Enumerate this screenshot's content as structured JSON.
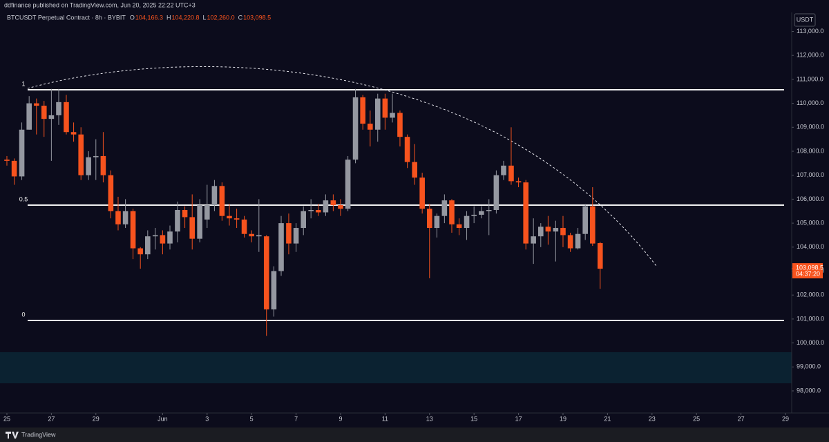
{
  "chart_data": {
    "type": "candlestick",
    "header": "ddfinance published on TradingView.com, Jun 20, 2025 22:22 UTC+3",
    "legend": "BTCUSDT Perpetual Contract · 8h · BYBIT",
    "ohlc_labels": [
      {
        "key": "O",
        "value": "104,166.3"
      },
      {
        "key": "H",
        "value": "104,220.8"
      },
      {
        "key": "L",
        "value": "102,260.0"
      },
      {
        "key": "C",
        "value": "103,098.5"
      }
    ],
    "currency": "USDT",
    "footer": "TradingView",
    "up_color": "#9598a1",
    "down_color": "#f7531e",
    "x": [
      0,
      0.33,
      0.67,
      1,
      1.33,
      1.67,
      2,
      2.33,
      2.67,
      3,
      3.33,
      3.67,
      4,
      4.33,
      4.67,
      5,
      5.33,
      5.67,
      6,
      6.33,
      6.67,
      7,
      7.33,
      7.67,
      8,
      8.33,
      8.67,
      9,
      9.33,
      9.67,
      10,
      10.33,
      10.67,
      11,
      11.33,
      11.67,
      12,
      12.33,
      12.67,
      13,
      13.33,
      13.67,
      14,
      14.33,
      14.67,
      15,
      15.33,
      15.67,
      16,
      16.33,
      16.67,
      17,
      17.33,
      17.67,
      18,
      18.33,
      18.67,
      19,
      19.33,
      19.67,
      20,
      20.33,
      20.67,
      21,
      21.33,
      21.67,
      22,
      22.33,
      22.67,
      23,
      23.33,
      23.67,
      24,
      24.33,
      24.67,
      25,
      25.33,
      25.67,
      26,
      26.33,
      26.67
    ],
    "open": [
      107650,
      107600,
      106950,
      108900,
      110000,
      109900,
      109350,
      109500,
      110050,
      108800,
      108700,
      107000,
      107750,
      107800,
      107000,
      105500,
      104950,
      105500,
      103950,
      103700,
      104450,
      104500,
      104150,
      104650,
      105550,
      105250,
      104350,
      105150,
      105750,
      106550,
      105300,
      105200,
      105150,
      104550,
      104450,
      104450,
      101400,
      103000,
      105000,
      104150,
      104800,
      105500,
      105550,
      105450,
      105950,
      105750,
      105600,
      107650,
      110250,
      109150,
      108900,
      110200,
      109400,
      109600,
      108600,
      107550,
      106900,
      105600,
      104800,
      105300,
      105950,
      104950,
      104800,
      105300,
      105350,
      105500,
      105550,
      107000,
      107400,
      106750,
      106700,
      104150,
      104450,
      104850,
      104650,
      104800,
      104500,
      103950,
      104550,
      105700,
      104166.3
    ],
    "high": [
      107800,
      107700,
      109200,
      110300,
      110200,
      110100,
      110600,
      110600,
      110350,
      109200,
      109000,
      108000,
      108500,
      108800,
      107200,
      106100,
      106000,
      105600,
      104000,
      104700,
      104800,
      104700,
      104900,
      105900,
      105700,
      106200,
      106000,
      106600,
      106800,
      106700,
      105800,
      105600,
      105300,
      104700,
      106000,
      104500,
      103200,
      105300,
      105400,
      105000,
      105700,
      106000,
      105800,
      106200,
      106200,
      106000,
      107800,
      110600,
      110350,
      109700,
      110400,
      110400,
      110400,
      109700,
      108700,
      108300,
      107100,
      105800,
      105400,
      106200,
      106000,
      105200,
      105500,
      105700,
      105700,
      106000,
      107200,
      107600,
      109000,
      106900,
      106800,
      105200,
      105000,
      105300,
      105100,
      105300,
      104600,
      104800,
      105800,
      106500,
      104220.8
    ],
    "low": [
      107400,
      106600,
      106800,
      108900,
      108700,
      108600,
      107600,
      109100,
      108700,
      108400,
      106800,
      106800,
      106800,
      106700,
      105200,
      104700,
      104800,
      103500,
      103100,
      103500,
      103900,
      103700,
      103900,
      104200,
      104800,
      103900,
      104200,
      104800,
      105500,
      105100,
      104900,
      104800,
      104400,
      104200,
      103800,
      100300,
      101100,
      102800,
      103700,
      103800,
      104500,
      105200,
      105300,
      105300,
      105500,
      105300,
      105500,
      107500,
      108900,
      108200,
      108400,
      108900,
      109200,
      108200,
      107300,
      106600,
      105400,
      102700,
      104400,
      105000,
      104600,
      104500,
      104300,
      105000,
      105200,
      104500,
      105400,
      106800,
      106600,
      106500,
      103900,
      103300,
      104000,
      104100,
      103400,
      104000,
      103800,
      103900,
      104300,
      104050,
      102260
    ],
    "close": [
      107600,
      106950,
      108900,
      110000,
      109900,
      109350,
      109500,
      110050,
      108800,
      108700,
      107000,
      107750,
      107800,
      107000,
      105500,
      104950,
      105500,
      103950,
      103700,
      104450,
      104500,
      104150,
      104650,
      105550,
      105250,
      104350,
      105750,
      105750,
      106550,
      105300,
      105200,
      105150,
      104550,
      104450,
      104500,
      101400,
      103000,
      105000,
      104150,
      104800,
      105500,
      105550,
      105450,
      105950,
      105750,
      105600,
      107650,
      110250,
      109150,
      108900,
      110200,
      109400,
      109600,
      108600,
      107550,
      106900,
      105600,
      104800,
      105300,
      105950,
      104950,
      104800,
      105300,
      105350,
      105500,
      105550,
      107000,
      107400,
      106750,
      106700,
      104150,
      104450,
      104850,
      104650,
      104800,
      104500,
      103950,
      104550,
      105700,
      104150,
      103098.5
    ],
    "levels": [
      {
        "value": 110565,
        "label": "1"
      },
      {
        "value": 105752,
        "label": "0.5"
      },
      {
        "value": 100940,
        "label": "0"
      }
    ],
    "last_price": {
      "value": 103098.5,
      "label": "103,098.5"
    },
    "countdown": "04:37:20",
    "xlim": [
      -0.31,
      35.28
    ],
    "xticks": [
      {
        "value": 0,
        "label": "25"
      },
      {
        "value": 2,
        "label": "27"
      },
      {
        "value": 4,
        "label": "29"
      },
      {
        "value": 7,
        "label": "Jun"
      },
      {
        "value": 9,
        "label": "3"
      },
      {
        "value": 11,
        "label": "5"
      },
      {
        "value": 13,
        "label": "7"
      },
      {
        "value": 15,
        "label": "9"
      },
      {
        "value": 17,
        "label": "11"
      },
      {
        "value": 19,
        "label": "13"
      },
      {
        "value": 21,
        "label": "15"
      },
      {
        "value": 23,
        "label": "17"
      },
      {
        "value": 25,
        "label": "19"
      },
      {
        "value": 27,
        "label": "21"
      },
      {
        "value": 29,
        "label": "23"
      },
      {
        "value": 31,
        "label": "25"
      },
      {
        "value": 33,
        "label": "27"
      },
      {
        "value": 35,
        "label": "29"
      }
    ],
    "ylim": [
      97107,
      113792
    ],
    "yticks": [
      {
        "value": 98000,
        "label": "98,000.0"
      },
      {
        "value": 99000,
        "label": "99,000.0"
      },
      {
        "value": 100000,
        "label": "100,000.0"
      },
      {
        "value": 101000,
        "label": "101,000.0"
      },
      {
        "value": 102000,
        "label": "102,000.0"
      },
      {
        "value": 103000,
        "label": "103,000.0"
      },
      {
        "value": 104000,
        "label": "104,000.0"
      },
      {
        "value": 105000,
        "label": "105,000.0"
      },
      {
        "value": 106000,
        "label": "106,000.0"
      },
      {
        "value": 107000,
        "label": "107,000.0"
      },
      {
        "value": 108000,
        "label": "108,000.0"
      },
      {
        "value": 109000,
        "label": "109,000.0"
      },
      {
        "value": 110000,
        "label": "110,000.0"
      },
      {
        "value": 111000,
        "label": "111,000.0"
      },
      {
        "value": 112000,
        "label": "112,000.0"
      },
      {
        "value": 113000,
        "label": "113,000.0"
      }
    ],
    "grid": false
  }
}
